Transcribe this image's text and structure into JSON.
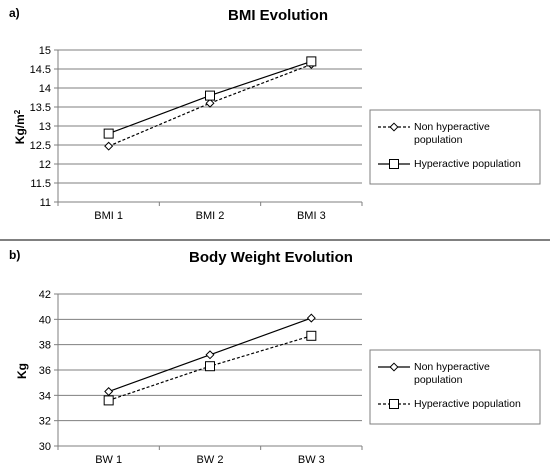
{
  "chart_data": [
    {
      "panel_label": "a)",
      "type": "line",
      "title": "BMI Evolution",
      "ylabel": "Kg/m²",
      "ylabel_main": "Kg/m",
      "ylabel_sup": "2",
      "categories": [
        "BMI 1",
        "BMI 2",
        "BMI 3"
      ],
      "ylim": [
        11,
        15
      ],
      "ytick_step": 0.5,
      "yticks": [
        "11",
        "11.5",
        "12",
        "12.5",
        "13",
        "13.5",
        "14",
        "14.5",
        "15"
      ],
      "grid": true,
      "legend_position": "right",
      "series": [
        {
          "name": "Non hyperactive population",
          "name_lines": [
            "Non hyperactive",
            "population"
          ],
          "values": [
            12.47,
            13.6,
            14.62
          ],
          "line_style": "dashed",
          "marker": "diamond",
          "color": "#000000"
        },
        {
          "name": "Hyperactive population",
          "name_lines": [
            "Hyperactive population"
          ],
          "values": [
            12.8,
            13.8,
            14.7
          ],
          "line_style": "solid",
          "marker": "square",
          "color": "#000000"
        }
      ]
    },
    {
      "panel_label": "b)",
      "type": "line",
      "title": "Body Weight Evolution",
      "ylabel": "Kg",
      "ylabel_main": "Kg",
      "ylabel_sup": "",
      "categories": [
        "BW 1",
        "BW 2",
        "BW 3"
      ],
      "ylim": [
        30,
        42
      ],
      "ytick_step": 2,
      "yticks": [
        "30",
        "32",
        "34",
        "36",
        "38",
        "40",
        "42"
      ],
      "grid": true,
      "legend_position": "right",
      "series": [
        {
          "name": "Non hyperactive population",
          "name_lines": [
            "Non hyperactive",
            "population"
          ],
          "values": [
            34.3,
            37.2,
            40.1
          ],
          "line_style": "solid",
          "marker": "diamond",
          "color": "#000000"
        },
        {
          "name": "Hyperactive population",
          "name_lines": [
            "Hyperactive population"
          ],
          "values": [
            33.6,
            36.3,
            38.7
          ],
          "line_style": "dashed",
          "marker": "square",
          "color": "#000000"
        }
      ]
    }
  ]
}
